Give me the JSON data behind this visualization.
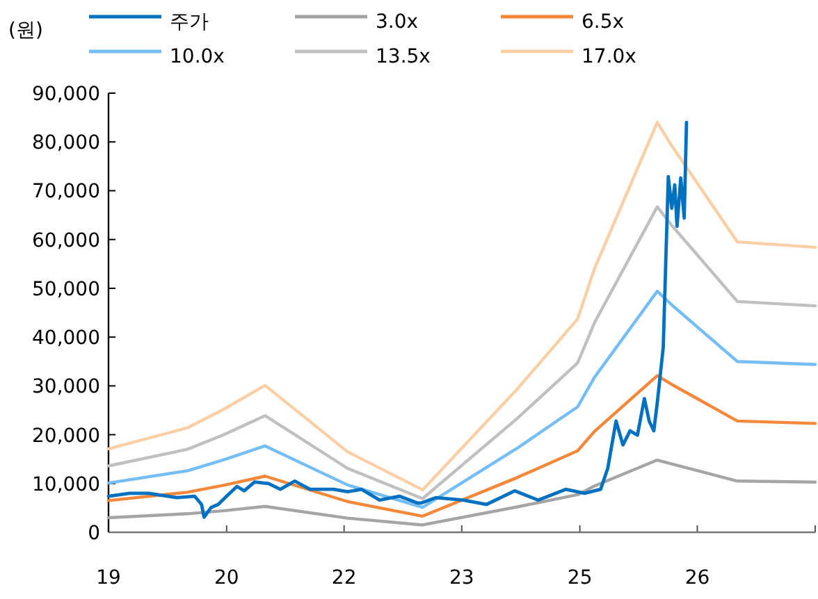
{
  "chart_data": {
    "type": "line",
    "ylabel": "(원)",
    "legend": "top",
    "xlim": [
      "2019-06-15",
      "2027-11-09"
    ],
    "xticks": [
      {
        "value": "2019-06-15",
        "label": "19"
      },
      {
        "value": "2020-11-09",
        "label": "20"
      },
      {
        "value": "2022-04-03",
        "label": "22"
      },
      {
        "value": "2023-08-27",
        "label": "23"
      },
      {
        "value": "2025-01-21",
        "label": "25"
      },
      {
        "value": "2026-06-15",
        "label": "26"
      },
      {
        "value": "2027-11-09",
        "label": null
      }
    ],
    "ylim": [
      0,
      90000
    ],
    "yticks": [
      {
        "value": 0,
        "label": "0"
      },
      {
        "value": 10000,
        "label": "10,000"
      },
      {
        "value": 20000,
        "label": "20,000"
      },
      {
        "value": 30000,
        "label": "30,000"
      },
      {
        "value": 40000,
        "label": "40,000"
      },
      {
        "value": 50000,
        "label": "50,000"
      },
      {
        "value": 60000,
        "label": "60,000"
      },
      {
        "value": 70000,
        "label": "70,000"
      },
      {
        "value": 80000,
        "label": "80,000"
      },
      {
        "value": 90000,
        "label": "90,000"
      }
    ],
    "series": [
      {
        "name": "주가",
        "color": "#0070c0",
        "x": [
          "2019-06-15",
          "2019-09-15",
          "2019-12-06",
          "2020-04-07",
          "2020-06-23",
          "2020-07-23",
          "2020-08-03",
          "2020-09-03",
          "2020-10-03",
          "2020-11-09",
          "2020-12-24",
          "2021-01-24",
          "2021-03-10",
          "2021-05-10",
          "2021-06-30",
          "2021-09-01",
          "2021-11-06",
          "2022-02-17",
          "2022-04-18",
          "2022-06-18",
          "2022-09-04",
          "2022-11-29",
          "2023-02-15",
          "2023-03-05",
          "2023-05-06",
          "2023-09-02",
          "2023-12-12",
          "2024-04-13",
          "2024-07-24",
          "2024-11-20",
          "2025-02-11",
          "2025-04-21",
          "2025-05-22",
          "2025-06-27",
          "2025-07-27",
          "2025-08-27",
          "2025-09-28",
          "2025-10-28",
          "2025-11-18",
          "2025-12-08",
          "2025-12-23",
          "2026-01-18",
          "2026-02-09",
          "2026-02-24",
          "2026-03-09",
          "2026-03-19",
          "2026-04-04",
          "2026-04-19",
          "2026-04-29"
        ],
        "values": [
          7400,
          8000,
          8000,
          7100,
          7400,
          5700,
          3100,
          5100,
          5700,
          7400,
          9400,
          8500,
          10300,
          10000,
          8800,
          10500,
          8800,
          8800,
          8300,
          8800,
          6600,
          7400,
          6000,
          6000,
          7100,
          6600,
          5700,
          8500,
          6600,
          8800,
          8000,
          8800,
          13100,
          22800,
          17900,
          20800,
          19900,
          27400,
          22800,
          20800,
          26500,
          37900,
          72900,
          66400,
          71200,
          62700,
          72600,
          64400,
          84000
        ]
      },
      {
        "name": "3.0x",
        "color": "#a5a5a5",
        "x": [
          "2019-06-15",
          "2020-05-22",
          "2020-10-23",
          "2021-04-25",
          "2022-04-18",
          "2023-03-10",
          "2024-04-23",
          "2025-01-11",
          "2025-03-26",
          "2025-12-23",
          "2026-02-24",
          "2026-12-06",
          "2027-11-09"
        ],
        "values": [
          3000,
          3800,
          4400,
          5300,
          2900,
          1500,
          5200,
          7700,
          9500,
          14800,
          14000,
          10500,
          10300
        ]
      },
      {
        "name": "6.5x",
        "color": "#f4883a",
        "x": [
          "2019-06-15",
          "2020-05-22",
          "2020-10-23",
          "2021-04-25",
          "2022-04-18",
          "2023-03-10",
          "2024-04-23",
          "2025-01-11",
          "2025-03-26",
          "2025-12-23",
          "2026-02-24",
          "2026-12-06",
          "2027-11-09"
        ],
        "values": [
          6500,
          8200,
          9600,
          11500,
          6300,
          3300,
          11200,
          16700,
          20700,
          32100,
          30300,
          22800,
          22300
        ]
      },
      {
        "name": "10.0x",
        "color": "#75bdf5",
        "x": [
          "2019-06-15",
          "2020-05-22",
          "2020-10-23",
          "2021-04-25",
          "2022-04-18",
          "2023-03-10",
          "2024-04-23",
          "2025-01-11",
          "2025-03-26",
          "2025-12-23",
          "2026-02-24",
          "2026-12-06",
          "2027-11-09"
        ],
        "values": [
          10100,
          12600,
          14800,
          17700,
          9700,
          5100,
          17200,
          25700,
          31800,
          49400,
          46600,
          35000,
          34400
        ]
      },
      {
        "name": "13.5x",
        "color": "#c0c0c0",
        "x": [
          "2019-06-15",
          "2020-05-22",
          "2020-10-23",
          "2021-04-25",
          "2022-04-18",
          "2023-03-10",
          "2024-04-23",
          "2025-01-11",
          "2025-03-26",
          "2025-12-23",
          "2026-02-24",
          "2026-12-06",
          "2027-11-09"
        ],
        "values": [
          13600,
          17000,
          19900,
          23900,
          13100,
          6900,
          23300,
          34700,
          43000,
          66700,
          62900,
          47300,
          46400
        ]
      },
      {
        "name": "17.0x",
        "color": "#fbcfa5",
        "x": [
          "2019-06-15",
          "2020-05-22",
          "2020-10-23",
          "2021-04-25",
          "2022-04-18",
          "2023-03-10",
          "2024-04-23",
          "2025-01-11",
          "2025-03-26",
          "2025-12-23",
          "2026-02-24",
          "2026-12-06",
          "2027-11-09"
        ],
        "values": [
          17100,
          21400,
          25100,
          30100,
          16500,
          8700,
          29300,
          43700,
          54100,
          84000,
          79200,
          59500,
          58400
        ]
      }
    ]
  }
}
